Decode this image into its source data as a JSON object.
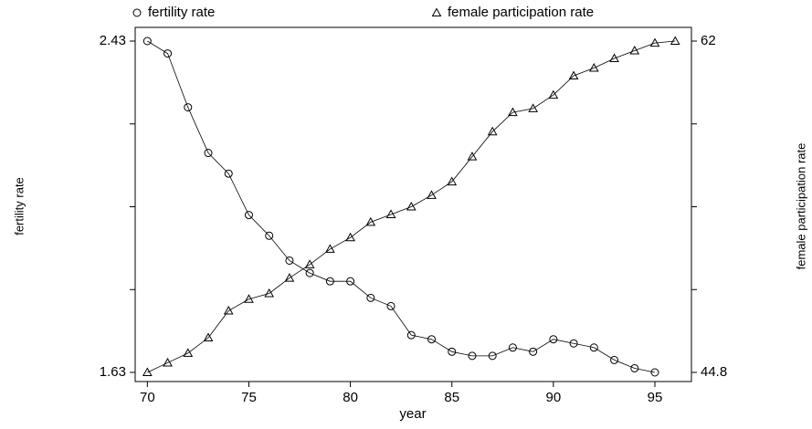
{
  "chart_data": {
    "type": "line",
    "xlabel": "year",
    "ylabel": "fertility rate",
    "y2label": "female participation rate",
    "xlim": [
      69.4,
      96.8
    ],
    "xticks": [
      70,
      75,
      80,
      85,
      90,
      95
    ],
    "ylim": [
      1.63,
      2.43
    ],
    "yticks": [
      1.63,
      2.43
    ],
    "yminorticks": [
      1.83,
      2.03,
      2.23
    ],
    "y2lim": [
      44.8,
      62
    ],
    "y2ticks": [
      44.8,
      62
    ],
    "y2minorticks": [
      49.1,
      53.4,
      57.7
    ],
    "series": [
      {
        "name": "fertility rate",
        "color": "#000000",
        "marker": "circle",
        "x": [
          70,
          71,
          72,
          73,
          74,
          75,
          76,
          77,
          78,
          79,
          80,
          81,
          82,
          83,
          84,
          85,
          86,
          87,
          88,
          89,
          90,
          91,
          92,
          93,
          94,
          95
        ],
        "values": [
          2.43,
          2.4,
          2.27,
          2.16,
          2.11,
          2.01,
          1.96,
          1.9,
          1.87,
          1.85,
          1.85,
          1.81,
          1.79,
          1.72,
          1.71,
          1.68,
          1.67,
          1.67,
          1.69,
          1.68,
          1.71,
          1.7,
          1.69,
          1.66,
          1.64,
          1.63
        ]
      },
      {
        "name": "female participation rate",
        "color": "#000000",
        "marker": "triangle",
        "axis": "y2",
        "x": [
          70,
          71,
          72,
          73,
          74,
          75,
          76,
          77,
          78,
          79,
          80,
          81,
          82,
          83,
          84,
          85,
          86,
          87,
          88,
          89,
          90,
          91,
          92,
          93,
          94,
          95,
          96
        ],
        "values": [
          44.8,
          45.3,
          45.8,
          46.6,
          48.0,
          48.6,
          48.9,
          49.7,
          50.4,
          51.2,
          51.8,
          52.6,
          53.0,
          53.4,
          54.0,
          54.7,
          56.0,
          57.3,
          58.3,
          58.5,
          59.2,
          60.2,
          60.6,
          61.1,
          61.5,
          61.9,
          62.0
        ]
      }
    ]
  }
}
